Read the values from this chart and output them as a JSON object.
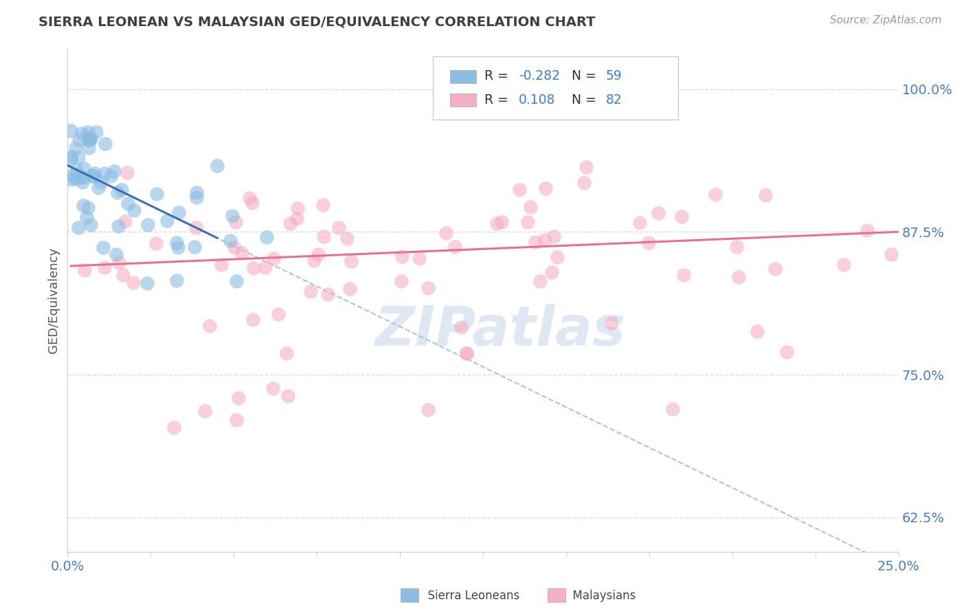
{
  "title": "SIERRA LEONEAN VS MALAYSIAN GED/EQUIVALENCY CORRELATION CHART",
  "source": "Source: ZipAtlas.com",
  "ylabel": "GED/Equivalency",
  "xlim": [
    0.0,
    0.25
  ],
  "ylim": [
    0.595,
    1.035
  ],
  "xtick_vals": [
    0.0,
    0.025,
    0.05,
    0.075,
    0.1,
    0.125,
    0.15,
    0.175,
    0.2,
    0.225,
    0.25
  ],
  "xtick_labels_show": {
    "0.0": "0.0%",
    "0.25": "25.0%"
  },
  "ytick_vals": [
    0.625,
    0.75,
    0.875,
    1.0
  ],
  "ytick_labels": [
    "62.5%",
    "75.0%",
    "87.5%",
    "100.0%"
  ],
  "legend_labels": [
    "Sierra Leoneans",
    "Malaysians"
  ],
  "legend_r_values": [
    "-0.282",
    "0.108"
  ],
  "legend_n_values": [
    "59",
    "82"
  ],
  "sierra_color": "#8bbde0",
  "malaysia_color": "#f4afc4",
  "sierra_line_color": "#3a6db5",
  "malaysia_line_color": "#e8708a",
  "dashed_line_color": "#a8c4e0",
  "background_color": "#ffffff",
  "grid_color": "#d5dce8",
  "watermark": "ZIPatlas",
  "title_color": "#404040",
  "source_color": "#999999",
  "ytick_color": "#4a7ec0",
  "xtick_color": "#4a7ec0",
  "ylabel_color": "#555555",
  "spine_color": "#cccccc",
  "legend_text_color": "#333333",
  "legend_value_color": "#3a7fd0"
}
